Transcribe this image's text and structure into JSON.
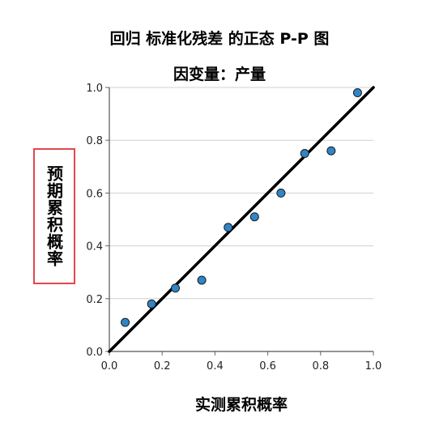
{
  "chart_data": {
    "type": "scatter",
    "title": "回归 标准化残差 的正态 P-P 图",
    "subtitle": "因变量：产量",
    "xlabel": "实测累积概率",
    "ylabel": "预期累积概率",
    "xlim": [
      0.0,
      1.0
    ],
    "ylim": [
      0.0,
      1.0
    ],
    "xticks": [
      "0.0",
      "0.2",
      "0.4",
      "0.6",
      "0.8",
      "1.0"
    ],
    "yticks": [
      "0.0",
      "0.2",
      "0.4",
      "0.6",
      "0.8",
      "1.0"
    ],
    "grid": "horizontal",
    "reference_line": [
      [
        0.0,
        0.0
      ],
      [
        1.0,
        1.0
      ]
    ],
    "x": [
      0.06,
      0.16,
      0.25,
      0.35,
      0.45,
      0.55,
      0.65,
      0.74,
      0.84,
      0.94
    ],
    "y": [
      0.11,
      0.18,
      0.24,
      0.27,
      0.47,
      0.51,
      0.6,
      0.75,
      0.76,
      0.98
    ],
    "point_color": "#2e86c9",
    "line_color": "#000000"
  }
}
